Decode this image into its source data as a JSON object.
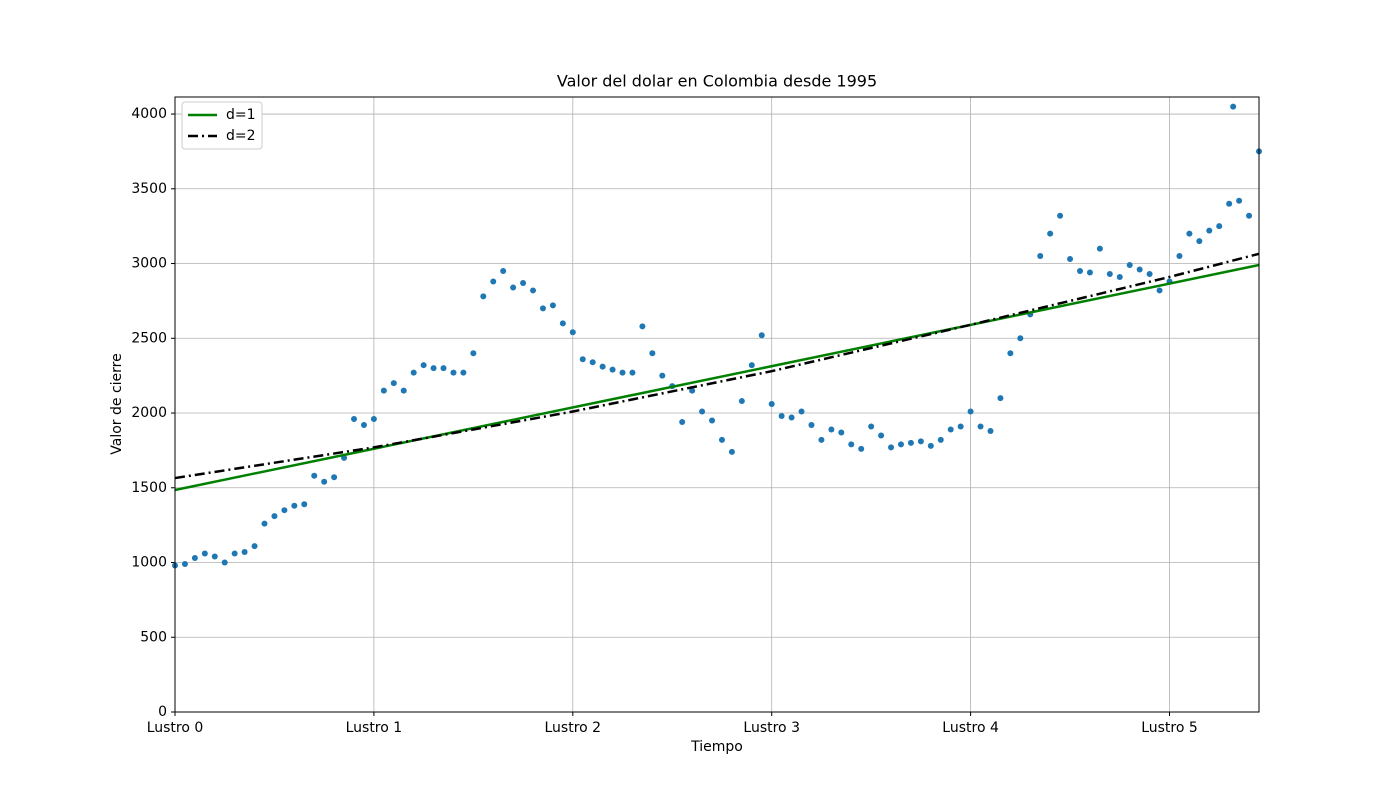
{
  "chart_data": {
    "type": "scatter",
    "title": "Valor del dolar en Colombia desde 1995",
    "x_label": "Tiempo",
    "y_label": "Valor de cierre",
    "xlim": [
      0,
      5.45
    ],
    "ylim": [
      0,
      4114
    ],
    "xticks": [
      {
        "value": 0,
        "label": "Lustro 0"
      },
      {
        "value": 1,
        "label": "Lustro 1"
      },
      {
        "value": 2,
        "label": "Lustro 2"
      },
      {
        "value": 3,
        "label": "Lustro 3"
      },
      {
        "value": 4,
        "label": "Lustro 4"
      },
      {
        "value": 5,
        "label": "Lustro 5"
      }
    ],
    "yticks": [
      0,
      500,
      1000,
      1500,
      2000,
      2500,
      3000,
      3500,
      4000
    ],
    "grid": true,
    "legend": "upper left",
    "points": {
      "color": "#1f77b4",
      "x": [
        0,
        0.05,
        0.1,
        0.15,
        0.2,
        0.25,
        0.3,
        0.35,
        0.4,
        0.45,
        0.5,
        0.55,
        0.6,
        0.65,
        0.7,
        0.75,
        0.8,
        0.85,
        0.9,
        0.95,
        1.0,
        1.05,
        1.1,
        1.15,
        1.2,
        1.25,
        1.3,
        1.35,
        1.4,
        1.45,
        1.5,
        1.55,
        1.6,
        1.65,
        1.7,
        1.75,
        1.8,
        1.85,
        1.9,
        1.95,
        2.0,
        2.05,
        2.1,
        2.15,
        2.2,
        2.25,
        2.3,
        2.35,
        2.4,
        2.45,
        2.5,
        2.55,
        2.6,
        2.65,
        2.7,
        2.75,
        2.8,
        2.85,
        2.9,
        2.95,
        3.0,
        3.05,
        3.1,
        3.15,
        3.2,
        3.25,
        3.3,
        3.35,
        3.4,
        3.45,
        3.5,
        3.55,
        3.6,
        3.65,
        3.7,
        3.75,
        3.8,
        3.85,
        3.9,
        3.95,
        4.0,
        4.05,
        4.1,
        4.15,
        4.2,
        4.25,
        4.3,
        4.35,
        4.4,
        4.45,
        4.5,
        4.55,
        4.6,
        4.65,
        4.7,
        4.75,
        4.8,
        4.85,
        4.9,
        4.95,
        5.0,
        5.05,
        5.1,
        5.15,
        5.2,
        5.25,
        5.3,
        5.32,
        5.35,
        5.4,
        5.45
      ],
      "values": [
        980,
        990,
        1030,
        1060,
        1040,
        1000,
        1060,
        1070,
        1110,
        1260,
        1310,
        1350,
        1380,
        1390,
        1580,
        1540,
        1570,
        1700,
        1960,
        1920,
        1960,
        2150,
        2200,
        2150,
        2270,
        2320,
        2300,
        2300,
        2270,
        2270,
        2400,
        2780,
        2880,
        2950,
        2840,
        2870,
        2820,
        2700,
        2720,
        2600,
        2540,
        2360,
        2340,
        2310,
        2290,
        2270,
        2270,
        2580,
        2400,
        2250,
        2180,
        1940,
        2150,
        2010,
        1950,
        1820,
        1740,
        2080,
        2320,
        2520,
        2060,
        1980,
        1970,
        2010,
        1920,
        1820,
        1890,
        1870,
        1790,
        1760,
        1910,
        1850,
        1770,
        1790,
        1800,
        1810,
        1780,
        1820,
        1890,
        1910,
        2010,
        1910,
        1880,
        2100,
        2400,
        2500,
        2660,
        3050,
        3200,
        3320,
        3030,
        2950,
        2940,
        3100,
        2930,
        2910,
        2990,
        2960,
        2930,
        2820,
        2880,
        3050,
        3200,
        3150,
        3220,
        3250,
        3400,
        4050,
        3420,
        3320,
        3750
      ]
    },
    "series": [
      {
        "name": "d=1",
        "color": "#008000",
        "x": [
          0,
          5.45
        ],
        "values": [
          1485,
          2990
        ]
      },
      {
        "name": "d=2",
        "color": "#000000",
        "x": [
          0,
          1,
          2,
          3,
          4,
          5,
          5.45
        ],
        "values": [
          1565,
          1770,
          2010,
          2280,
          2590,
          2910,
          3065
        ]
      }
    ]
  }
}
